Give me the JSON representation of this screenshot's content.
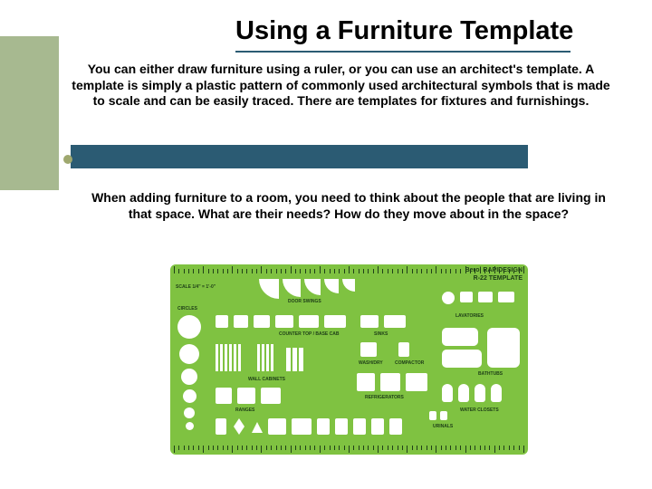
{
  "title": "Using a Furniture Template",
  "paragraph1": "You can either draw furniture using a ruler, or you can use an architect's template. A template is simply a plastic pattern of commonly used architectural symbols that is made to scale and can be easily traced. There are templates for fixtures and furnishings.",
  "paragraph2": "When adding furniture to a room, you need to think about the people that are living in that space. What are their needs?  How do they move about in the space?",
  "colors": {
    "side_block": "#a7b990",
    "accent_bar": "#2b5b73",
    "bullet": "#9fa86f",
    "title_underline": "#2b5b73",
    "template_bg": "#7fc241",
    "template_ink": "#1f4018"
  },
  "template": {
    "brand": "Berol RAPIDESIGN",
    "model": "R-22 TEMPLATE",
    "scale_label": "SCALE 1/4\" = 1'-0\"",
    "sections": [
      "DOOR SWINGS",
      "CIRCLES",
      "COUNTER TOP / BASE CAB",
      "WALL CABINETS",
      "RANGES",
      "SINKS",
      "WASH/DRY",
      "COMPACTOR",
      "REFRIGERATORS",
      "LAVATORIES",
      "BATHTUBS",
      "WATER CLOSETS",
      "URINALS"
    ]
  }
}
